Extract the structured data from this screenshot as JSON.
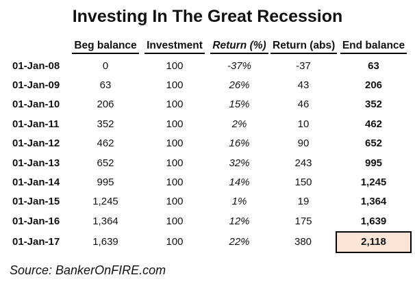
{
  "title": "Investing In The Great Recession",
  "source": "Source: BankerOnFIRE.com",
  "colors": {
    "highlight_fill": "#fce4d6",
    "highlight_border": "#000000",
    "text": "#111111",
    "background": "#ffffff"
  },
  "table": {
    "headers": [
      "Beg balance",
      "Investment",
      "Return (%)",
      "Return (abs)",
      "End balance"
    ],
    "rows": [
      {
        "date": "01-Jan-08",
        "beg": "0",
        "inv": "100",
        "ret_pct": "-37%",
        "ret_abs": "-37",
        "end": "63",
        "highlight": false
      },
      {
        "date": "01-Jan-09",
        "beg": "63",
        "inv": "100",
        "ret_pct": "26%",
        "ret_abs": "43",
        "end": "206",
        "highlight": false
      },
      {
        "date": "01-Jan-10",
        "beg": "206",
        "inv": "100",
        "ret_pct": "15%",
        "ret_abs": "46",
        "end": "352",
        "highlight": false
      },
      {
        "date": "01-Jan-11",
        "beg": "352",
        "inv": "100",
        "ret_pct": "2%",
        "ret_abs": "10",
        "end": "462",
        "highlight": false
      },
      {
        "date": "01-Jan-12",
        "beg": "462",
        "inv": "100",
        "ret_pct": "16%",
        "ret_abs": "90",
        "end": "652",
        "highlight": false
      },
      {
        "date": "01-Jan-13",
        "beg": "652",
        "inv": "100",
        "ret_pct": "32%",
        "ret_abs": "243",
        "end": "995",
        "highlight": false
      },
      {
        "date": "01-Jan-14",
        "beg": "995",
        "inv": "100",
        "ret_pct": "14%",
        "ret_abs": "150",
        "end": "1,245",
        "highlight": false
      },
      {
        "date": "01-Jan-15",
        "beg": "1,245",
        "inv": "100",
        "ret_pct": "1%",
        "ret_abs": "19",
        "end": "1,364",
        "highlight": false
      },
      {
        "date": "01-Jan-16",
        "beg": "1,364",
        "inv": "100",
        "ret_pct": "12%",
        "ret_abs": "175",
        "end": "1,639",
        "highlight": false
      },
      {
        "date": "01-Jan-17",
        "beg": "1,639",
        "inv": "100",
        "ret_pct": "22%",
        "ret_abs": "380",
        "end": "2,118",
        "highlight": true
      }
    ]
  },
  "chart_data": {
    "type": "table",
    "title": "Investing In The Great Recession",
    "categories": [
      "01-Jan-08",
      "01-Jan-09",
      "01-Jan-10",
      "01-Jan-11",
      "01-Jan-12",
      "01-Jan-13",
      "01-Jan-14",
      "01-Jan-15",
      "01-Jan-16",
      "01-Jan-17"
    ],
    "series": [
      {
        "name": "Beg balance",
        "values": [
          0,
          63,
          206,
          352,
          462,
          652,
          995,
          1245,
          1364,
          1639
        ]
      },
      {
        "name": "Investment",
        "values": [
          100,
          100,
          100,
          100,
          100,
          100,
          100,
          100,
          100,
          100
        ]
      },
      {
        "name": "Return (%)",
        "values": [
          -37,
          26,
          15,
          2,
          16,
          32,
          14,
          1,
          12,
          22
        ]
      },
      {
        "name": "Return (abs)",
        "values": [
          -37,
          43,
          46,
          10,
          90,
          243,
          150,
          19,
          175,
          380
        ]
      },
      {
        "name": "End balance",
        "values": [
          63,
          206,
          352,
          462,
          652,
          995,
          1245,
          1364,
          1639,
          2118
        ]
      }
    ],
    "annotations": [
      "Final end balance 2,118 is highlighted"
    ],
    "footnote": "Source: BankerOnFIRE.com"
  }
}
